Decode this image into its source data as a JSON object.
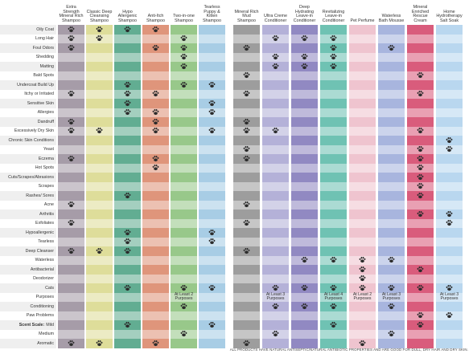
{
  "columns": [
    {
      "name": "Extra Strength Mineral Rich Shampoo",
      "color": "#a69ca8"
    },
    {
      "name": "Classic Deep Cleansing Shampoo",
      "color": "#dedd9a"
    },
    {
      "name": "Hypo Allergenic Shampoo",
      "color": "#62ad92"
    },
    {
      "name": "Anti-Itch Shampoo",
      "color": "#df957b"
    },
    {
      "name": "Two-in-one Shampoo",
      "color": "#98c88a"
    },
    {
      "name": "Tearless Puppy & Kitten Shampoo",
      "color": "#a8cde5"
    },
    {
      "name": "Mineral Rich Mud Shampoo",
      "color": "#9d9d9d"
    },
    {
      "name": "Ultra Creme Conditioner",
      "color": "#b4b1d8"
    },
    {
      "name": "Deep Hydrating Leave-in Conditioner",
      "color": "#9189c2"
    },
    {
      "name": "Revitalizing Leave-in Conditioner",
      "color": "#6fc2b3"
    },
    {
      "name": "Pet Perfume",
      "color": "#efc4cf"
    },
    {
      "name": "Waterless Bath Mousse",
      "color": "#a8b5de"
    },
    {
      "name": "Mineral Enriched Rescue Cream",
      "color": "#d95c7c"
    },
    {
      "name": "Home Hydrotherapy Salt Soak",
      "color": "#b9d7ef"
    }
  ],
  "rows": [
    {
      "label": "Oily Coat",
      "cells": [
        true,
        true,
        true,
        true,
        false,
        false,
        false,
        false,
        false,
        false,
        false,
        false,
        false,
        false
      ]
    },
    {
      "label": "Long Hair",
      "cells": [
        true,
        true,
        false,
        false,
        true,
        false,
        false,
        true,
        true,
        true,
        false,
        false,
        false,
        false
      ]
    },
    {
      "label": "Foul Odors",
      "cells": [
        true,
        false,
        false,
        true,
        true,
        false,
        true,
        false,
        false,
        true,
        false,
        true,
        false,
        false
      ]
    },
    {
      "label": "Shedding",
      "cells": [
        false,
        false,
        false,
        false,
        true,
        false,
        false,
        true,
        true,
        true,
        false,
        false,
        false,
        false
      ]
    },
    {
      "label": "Matting",
      "cells": [
        false,
        false,
        false,
        false,
        true,
        false,
        false,
        true,
        true,
        true,
        false,
        false,
        false,
        false
      ]
    },
    {
      "label": "Bald Spots",
      "cells": [
        false,
        false,
        false,
        false,
        false,
        false,
        true,
        false,
        false,
        false,
        false,
        false,
        true,
        false
      ]
    },
    {
      "label": "Undercoat Build Up",
      "cells": [
        false,
        false,
        true,
        false,
        true,
        true,
        false,
        false,
        false,
        false,
        false,
        false,
        false,
        false
      ]
    },
    {
      "label": "Itchy or Irritated",
      "cells": [
        true,
        false,
        true,
        true,
        false,
        false,
        true,
        false,
        false,
        false,
        false,
        false,
        true,
        false
      ]
    },
    {
      "label": "Sensitive Skin",
      "cells": [
        false,
        false,
        true,
        false,
        false,
        true,
        false,
        false,
        false,
        false,
        false,
        false,
        false,
        false
      ]
    },
    {
      "label": "Allergies",
      "cells": [
        false,
        false,
        true,
        true,
        false,
        true,
        false,
        false,
        false,
        false,
        false,
        false,
        false,
        false
      ]
    },
    {
      "label": "Dandruff",
      "cells": [
        true,
        false,
        false,
        true,
        false,
        false,
        true,
        false,
        false,
        false,
        false,
        false,
        false,
        false
      ]
    },
    {
      "label": "Excessively Dry Skin",
      "cells": [
        true,
        true,
        false,
        true,
        false,
        true,
        true,
        true,
        false,
        false,
        false,
        false,
        true,
        false
      ]
    },
    {
      "label": "Chronic Skin Conditions",
      "cells": [
        false,
        false,
        false,
        false,
        false,
        false,
        false,
        false,
        false,
        false,
        false,
        false,
        false,
        true
      ]
    },
    {
      "label": "Yeast",
      "cells": [
        false,
        false,
        false,
        false,
        false,
        false,
        true,
        false,
        false,
        false,
        false,
        false,
        true,
        true
      ]
    },
    {
      "label": "Eczema",
      "cells": [
        true,
        false,
        false,
        true,
        false,
        false,
        true,
        false,
        false,
        false,
        false,
        false,
        true,
        false
      ]
    },
    {
      "label": "Hot Spots",
      "cells": [
        false,
        false,
        false,
        true,
        false,
        false,
        false,
        false,
        false,
        false,
        false,
        false,
        true,
        false
      ]
    },
    {
      "label": "Cuts/Scrapes/Abrasions",
      "cells": [
        false,
        false,
        false,
        false,
        false,
        false,
        false,
        false,
        false,
        false,
        false,
        false,
        true,
        false
      ]
    },
    {
      "label": "Scrapes",
      "cells": [
        false,
        false,
        false,
        false,
        false,
        false,
        false,
        false,
        false,
        false,
        false,
        false,
        true,
        false
      ]
    },
    {
      "label": "Rashes/ Sores",
      "cells": [
        false,
        false,
        true,
        false,
        false,
        false,
        false,
        false,
        false,
        false,
        false,
        false,
        true,
        false
      ]
    },
    {
      "label": "Acne",
      "cells": [
        true,
        false,
        false,
        false,
        false,
        false,
        true,
        false,
        false,
        false,
        false,
        false,
        false,
        false
      ]
    },
    {
      "label": "Arthritis",
      "cells": [
        false,
        false,
        false,
        false,
        false,
        false,
        false,
        false,
        false,
        false,
        false,
        false,
        true,
        true
      ]
    },
    {
      "label": "Exfoliates",
      "cells": [
        true,
        false,
        false,
        false,
        false,
        false,
        true,
        false,
        false,
        false,
        false,
        false,
        false,
        true
      ]
    },
    {
      "label": "Hypoallergenic",
      "cells": [
        false,
        false,
        true,
        false,
        false,
        true,
        false,
        false,
        false,
        false,
        false,
        false,
        false,
        false
      ]
    },
    {
      "label": "Tearless",
      "cells": [
        false,
        false,
        true,
        false,
        false,
        true,
        false,
        false,
        false,
        false,
        false,
        false,
        false,
        false
      ]
    },
    {
      "label": "Deep Cleanser",
      "cells": [
        true,
        true,
        true,
        false,
        false,
        false,
        true,
        false,
        false,
        false,
        false,
        false,
        false,
        false
      ]
    },
    {
      "label": "Waterless",
      "cells": [
        false,
        false,
        false,
        false,
        false,
        false,
        false,
        false,
        true,
        true,
        true,
        true,
        false,
        false
      ]
    },
    {
      "label": "Antibacterial",
      "cells": [
        false,
        false,
        false,
        false,
        false,
        false,
        false,
        false,
        false,
        false,
        true,
        false,
        true,
        false
      ]
    },
    {
      "label": "Deodorizer",
      "cells": [
        false,
        false,
        false,
        false,
        false,
        false,
        false,
        false,
        false,
        false,
        true,
        false,
        false,
        false
      ]
    },
    {
      "label": "Cats",
      "cells": [
        false,
        false,
        true,
        false,
        true,
        true,
        false,
        true,
        true,
        true,
        true,
        true,
        true,
        true
      ]
    },
    {
      "label": "Purposes",
      "cells": [
        false,
        false,
        false,
        false,
        "At Least 2 Purposes",
        false,
        false,
        "At Least 3 Purposes",
        false,
        "At Least 4 Purposes",
        "At Least 2 Purposes",
        "At Least 3 Purposes",
        false,
        "At Least 3 Purposes"
      ]
    },
    {
      "label": "Conditioning",
      "cells": [
        false,
        false,
        false,
        false,
        true,
        false,
        false,
        true,
        true,
        true,
        false,
        true,
        false,
        false
      ]
    },
    {
      "label": "Paw Problems",
      "cells": [
        false,
        false,
        false,
        false,
        false,
        false,
        false,
        false,
        false,
        false,
        false,
        false,
        true,
        true
      ]
    },
    {
      "prefix": "Scent Scale:",
      "label": "Mild",
      "cells": [
        false,
        false,
        true,
        false,
        false,
        true,
        false,
        false,
        false,
        true,
        false,
        false,
        true,
        false
      ]
    },
    {
      "label": "Medium",
      "cells": [
        false,
        false,
        false,
        false,
        true,
        false,
        false,
        true,
        false,
        false,
        false,
        true,
        false,
        false
      ]
    },
    {
      "label": "Aromatic",
      "cells": [
        true,
        true,
        false,
        true,
        false,
        false,
        true,
        false,
        false,
        false,
        true,
        false,
        false,
        false
      ]
    }
  ],
  "footer": "ALL PRODUCTS HAVE NATURAL ANTISEPTIC/NATURAL ANTIBIOTIC PROPERTIES AND ARE GOOD FOR DULL, DRY HAIR AND DRY SKIN."
}
